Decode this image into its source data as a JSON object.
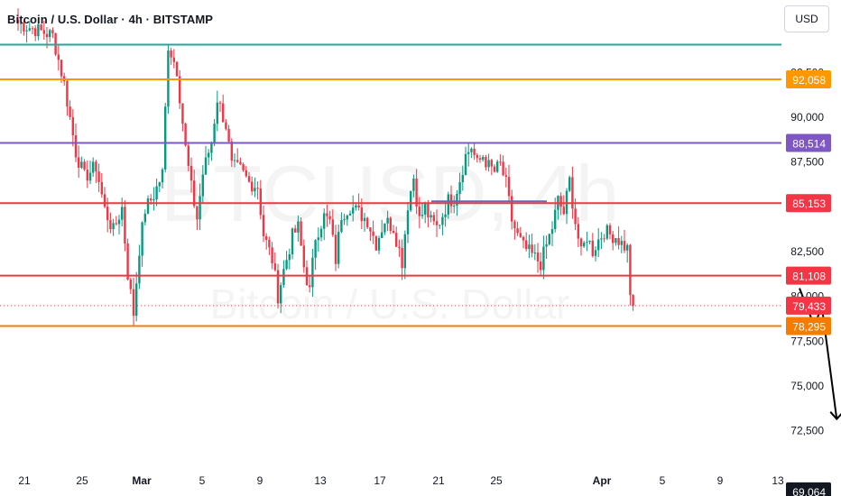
{
  "header": {
    "title": "Bitcoin / U.S. Dollar · 4h · BITSTAMP",
    "currency": "USD"
  },
  "watermark": {
    "symbol": "BTCUSD, 4h",
    "name": "Bitcoin / U.S. Dollar"
  },
  "colors": {
    "up": "#089981",
    "down": "#f23645",
    "teal_line": "#22ab94",
    "orange_line": "#ff9800",
    "purple_line": "#7e57c2",
    "red_line": "#f23645",
    "dark_orange_line": "#f57c00",
    "blue_segment": "#5c6bc0",
    "arrow": "#000000"
  },
  "chart_data": {
    "type": "candlestick",
    "title": "Bitcoin / U.S. Dollar · 4h · BITSTAMP",
    "ylim": [
      66500,
      99000
    ],
    "y_ticks": [
      92500,
      90000,
      87500,
      82500,
      80000,
      77500,
      75000,
      72500
    ],
    "y_tick_labels": [
      "92,500",
      "90,000",
      "87,500",
      "82,500",
      "80,000",
      "77,500",
      "75,000",
      "72,500"
    ],
    "x_ticks": [
      "21",
      "25",
      "Mar",
      "5",
      "9",
      "13",
      "17",
      "21",
      "25",
      "Apr",
      "5",
      "9",
      "13"
    ],
    "horizontal_levels": [
      {
        "value": 94000,
        "color": "#22ab94",
        "label": ""
      },
      {
        "value": 92058,
        "color": "#ff9800",
        "label": "92,058"
      },
      {
        "value": 88514,
        "color": "#7e57c2",
        "label": "88,514"
      },
      {
        "value": 85153,
        "color": "#f23645",
        "label": "85,153"
      },
      {
        "value": 81108,
        "color": "#f23645",
        "label": "81,108"
      },
      {
        "value": 78295,
        "color": "#f57c00",
        "label": "78,295"
      }
    ],
    "current_price": {
      "value": 79433,
      "label": "79,433"
    },
    "bottom_label": {
      "value": 69064,
      "label": "69,064"
    },
    "blue_segment": {
      "value": 85250,
      "from": "Mar 19",
      "to": "Mar 27"
    },
    "projection": [
      {
        "date": "Apr 7",
        "price": 80400
      },
      {
        "date": "Apr 8",
        "price": 78300
      },
      {
        "date": "Apr 8.5",
        "price": 79400
      },
      {
        "date": "Apr 9.5",
        "price": 73100
      }
    ],
    "keypoints": [
      {
        "t": 0,
        "p": 95200
      },
      {
        "t": 12,
        "p": 94500
      },
      {
        "t": 16,
        "p": 91800
      },
      {
        "t": 20,
        "p": 88000
      },
      {
        "t": 23,
        "p": 86600
      },
      {
        "t": 27,
        "p": 87200
      },
      {
        "t": 30,
        "p": 84800
      },
      {
        "t": 33,
        "p": 83600
      },
      {
        "t": 36,
        "p": 84900
      },
      {
        "t": 38,
        "p": 81200
      },
      {
        "t": 40,
        "p": 79000
      },
      {
        "t": 42,
        "p": 82600
      },
      {
        "t": 44,
        "p": 84800
      },
      {
        "t": 47,
        "p": 85600
      },
      {
        "t": 50,
        "p": 86800
      },
      {
        "t": 52,
        "p": 94000
      },
      {
        "t": 55,
        "p": 92600
      },
      {
        "t": 58,
        "p": 88200
      },
      {
        "t": 60,
        "p": 86000
      },
      {
        "t": 62,
        "p": 84300
      },
      {
        "t": 64,
        "p": 86800
      },
      {
        "t": 67,
        "p": 88600
      },
      {
        "t": 69,
        "p": 91000
      },
      {
        "t": 72,
        "p": 89500
      },
      {
        "t": 74,
        "p": 87200
      },
      {
        "t": 77,
        "p": 87000
      },
      {
        "t": 80,
        "p": 86300
      },
      {
        "t": 83,
        "p": 86100
      },
      {
        "t": 85,
        "p": 83400
      },
      {
        "t": 88,
        "p": 82000
      },
      {
        "t": 90,
        "p": 80000
      },
      {
        "t": 92,
        "p": 81400
      },
      {
        "t": 95,
        "p": 83300
      },
      {
        "t": 97,
        "p": 83800
      },
      {
        "t": 99,
        "p": 81600
      },
      {
        "t": 101,
        "p": 80200
      },
      {
        "t": 103,
        "p": 83300
      },
      {
        "t": 106,
        "p": 84400
      },
      {
        "t": 108,
        "p": 84100
      },
      {
        "t": 110,
        "p": 82000
      },
      {
        "t": 112,
        "p": 84500
      },
      {
        "t": 115,
        "p": 85000
      },
      {
        "t": 118,
        "p": 84600
      },
      {
        "t": 121,
        "p": 84200
      },
      {
        "t": 124,
        "p": 82900
      },
      {
        "t": 127,
        "p": 84200
      },
      {
        "t": 130,
        "p": 83800
      },
      {
        "t": 133,
        "p": 81900
      },
      {
        "t": 135,
        "p": 85100
      },
      {
        "t": 137,
        "p": 86600
      },
      {
        "t": 139,
        "p": 84200
      },
      {
        "t": 141,
        "p": 84900
      },
      {
        "t": 143,
        "p": 84100
      },
      {
        "t": 145,
        "p": 83800
      },
      {
        "t": 147,
        "p": 84500
      },
      {
        "t": 149,
        "p": 85300
      },
      {
        "t": 151,
        "p": 85400
      },
      {
        "t": 153,
        "p": 86500
      },
      {
        "t": 155,
        "p": 87800
      },
      {
        "t": 157,
        "p": 88300
      },
      {
        "t": 159,
        "p": 87300
      },
      {
        "t": 161,
        "p": 87800
      },
      {
        "t": 163,
        "p": 87200
      },
      {
        "t": 165,
        "p": 86900
      },
      {
        "t": 167,
        "p": 87300
      },
      {
        "t": 169,
        "p": 86200
      },
      {
        "t": 171,
        "p": 84200
      },
      {
        "t": 173,
        "p": 83300
      },
      {
        "t": 175,
        "p": 82700
      },
      {
        "t": 177,
        "p": 82400
      },
      {
        "t": 179,
        "p": 82100
      },
      {
        "t": 181,
        "p": 81800
      },
      {
        "t": 183,
        "p": 82800
      },
      {
        "t": 185,
        "p": 83800
      },
      {
        "t": 187,
        "p": 85300
      },
      {
        "t": 189,
        "p": 84600
      },
      {
        "t": 191,
        "p": 86400
      },
      {
        "t": 193,
        "p": 84100
      },
      {
        "t": 195,
        "p": 82300
      },
      {
        "t": 197,
        "p": 83300
      },
      {
        "t": 199,
        "p": 82500
      },
      {
        "t": 201,
        "p": 83100
      },
      {
        "t": 203,
        "p": 83600
      },
      {
        "t": 205,
        "p": 83400
      },
      {
        "t": 207,
        "p": 83300
      },
      {
        "t": 209,
        "p": 82900
      },
      {
        "t": 211,
        "p": 82600
      },
      {
        "t": 212,
        "p": 80200
      },
      {
        "t": 213,
        "p": 79433
      }
    ]
  }
}
